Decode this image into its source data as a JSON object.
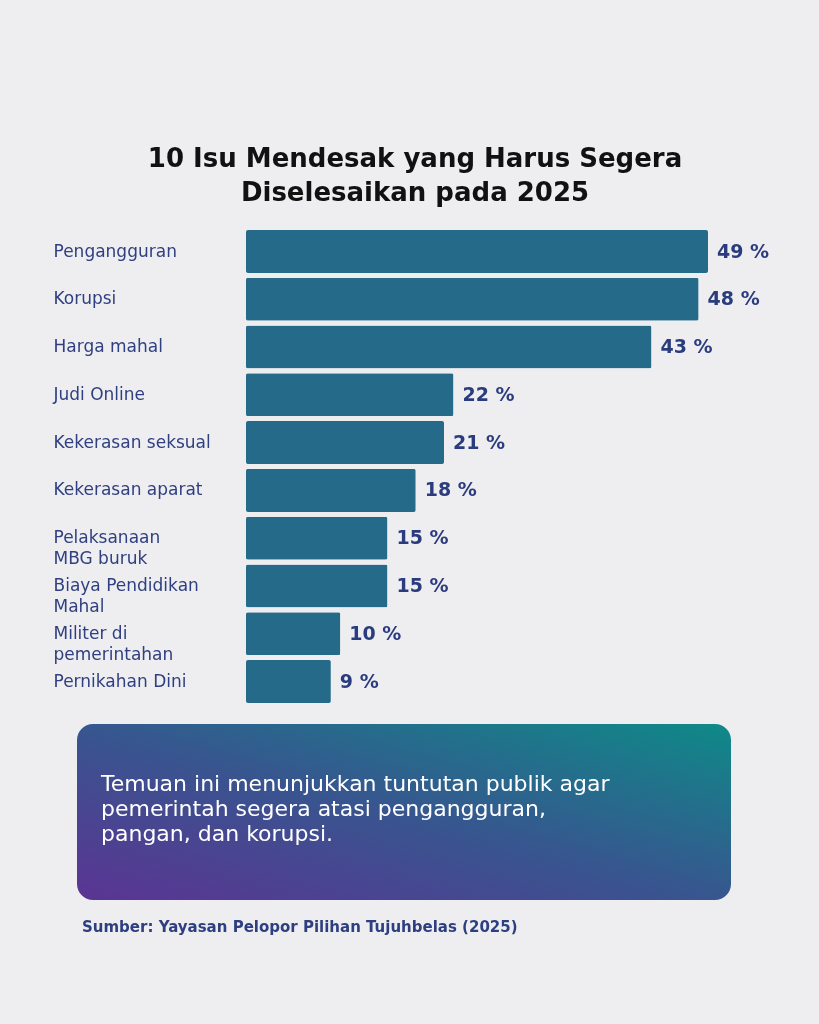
{
  "chart_data": {
    "type": "bar",
    "orientation": "horizontal",
    "title": "10 Isu Mendesak yang Harus Segera Diselesaikan pada 2025",
    "categories": [
      "Pengangguran",
      "Korupsi",
      "Harga mahal",
      "Judi Online",
      "Kekerasan seksual",
      "Kekerasan aparat",
      "Pelaksanaan MBG buruk",
      "Biaya Pendidikan Mahal",
      "Militer di pemerintahan",
      "Pernikahan Dini"
    ],
    "values": [
      49,
      48,
      43,
      22,
      21,
      18,
      15,
      15,
      10,
      9
    ],
    "value_labels": [
      "49 %",
      "48 %",
      "43 %",
      "22 %",
      "21 %",
      "18 %",
      "15 %",
      "15 %",
      "10 %",
      "9 %"
    ],
    "color": "#256b89",
    "annotations": [
      "Temuan ini menunjukkan tuntutan publik agar pemerintah segera atasi pengangguran, pangan, dan korupsi.",
      "Sumber: Yayasan Pelopor Pilihan Tujuhbelas (2025)"
    ]
  }
}
